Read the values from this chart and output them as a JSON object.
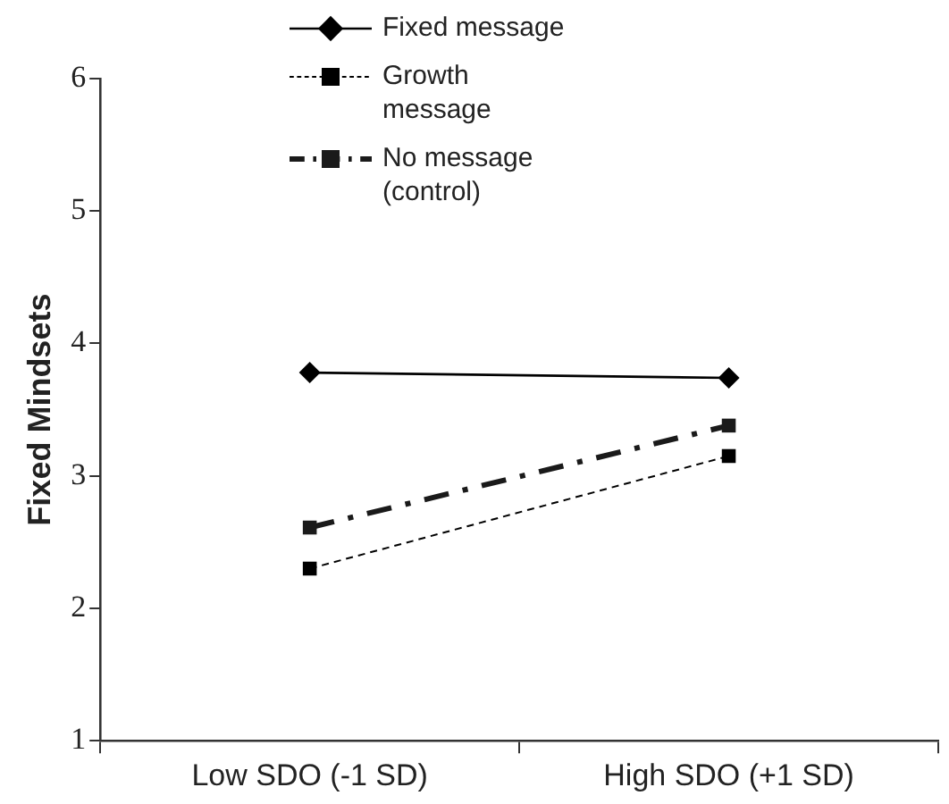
{
  "chart_data": {
    "type": "line",
    "ylabel": "Fixed Mindsets",
    "categories": [
      "Low SDO (-1 SD)",
      "High SDO (+1 SD)"
    ],
    "ylim": [
      1,
      6
    ],
    "yticks": [
      1,
      2,
      3,
      4,
      5,
      6
    ],
    "grid": false,
    "legend": "top",
    "series": [
      {
        "name": "Fixed message",
        "color": "#000000",
        "values": [
          3.78,
          3.74
        ],
        "marker": "diamond",
        "line_style": "solid"
      },
      {
        "name": "Growth message",
        "color": "#000000",
        "values": [
          2.3,
          3.15
        ],
        "marker": "square",
        "line_style": "dashed"
      },
      {
        "name": "No message (control)",
        "color": "#1a1a1a",
        "values": [
          2.61,
          3.38
        ],
        "marker": "square",
        "line_style": "dashdot"
      }
    ]
  }
}
